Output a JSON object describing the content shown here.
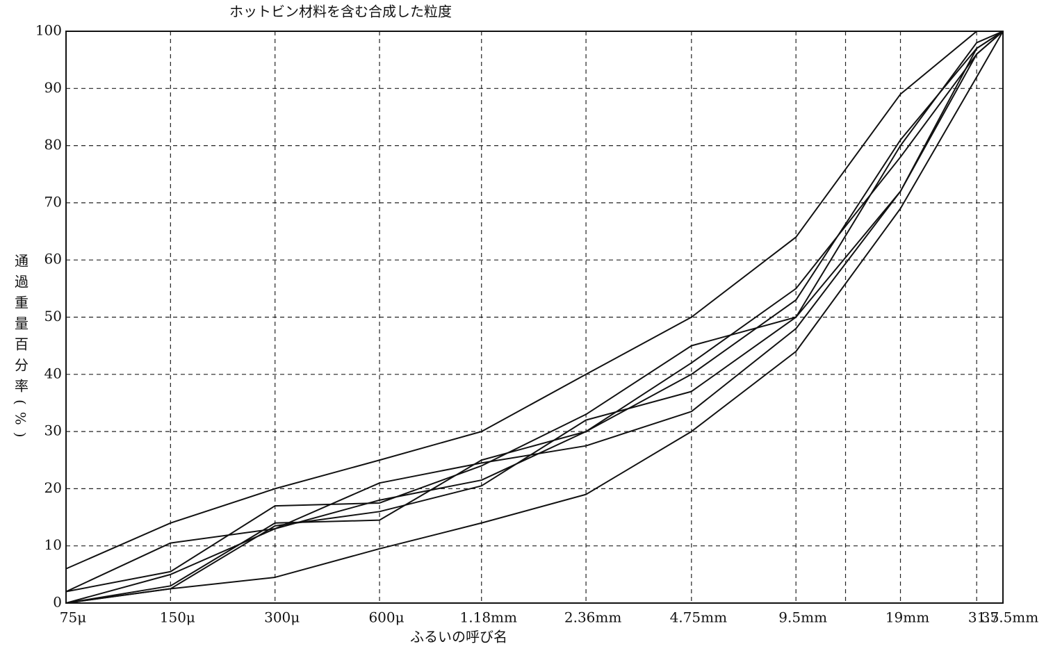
{
  "chart_data": {
    "type": "line",
    "title": "ホットビン材料を含む合成した粒度",
    "x_label": "ふるいの呼び名",
    "y_label": "通過重量百分率(%)",
    "x": [
      0.075,
      0.15,
      0.3,
      0.6,
      1.18,
      2.36,
      4.75,
      9.5,
      19,
      31.5,
      37.5
    ],
    "xscale": "log",
    "xlim": [
      0.075,
      37.5
    ],
    "xticks": [
      {
        "value": 0.075,
        "label": "75μ"
      },
      {
        "value": 0.15,
        "label": "150μ"
      },
      {
        "value": 0.3,
        "label": "300μ"
      },
      {
        "value": 0.6,
        "label": "600μ"
      },
      {
        "value": 1.18,
        "label": "1.18mm"
      },
      {
        "value": 2.36,
        "label": "2.36mm"
      },
      {
        "value": 4.75,
        "label": "4.75mm"
      },
      {
        "value": 9.5,
        "label": "9.5mm"
      },
      {
        "value": 13.2,
        "label": null
      },
      {
        "value": 19,
        "label": "19mm"
      },
      31.5,
      {
        "value": 37.5,
        "label": "37.5mm"
      }
    ],
    "ylim": [
      0,
      100
    ],
    "yticks": [
      0,
      10,
      20,
      30,
      40,
      50,
      60,
      70,
      80,
      90,
      100
    ],
    "grid": true,
    "series": [
      {
        "color": "#111",
        "values": [
          6,
          14,
          20,
          25,
          30,
          40,
          50,
          64,
          89,
          100,
          100
        ]
      },
      {
        "color": "#111",
        "values": [
          0,
          2.5,
          4.5,
          9.5,
          14,
          19,
          30,
          44,
          69,
          92,
          100
        ]
      },
      {
        "color": "#111",
        "values": [
          2,
          10.5,
          13,
          21,
          24.5,
          27.5,
          33.5,
          48,
          72,
          97,
          100
        ]
      },
      {
        "color": "#111",
        "values": [
          2,
          5.5,
          17,
          17.5,
          24,
          33,
          45,
          50,
          80,
          98,
          100
        ]
      },
      {
        "color": "#111",
        "values": [
          0,
          3,
          14,
          14.5,
          25,
          30,
          40,
          53,
          81,
          97,
          100
        ]
      },
      {
        "color": "#111",
        "values": [
          0,
          2.5,
          13.5,
          16,
          20.5,
          32,
          37,
          50,
          72,
          96,
          100
        ]
      },
      {
        "color": "#111",
        "values": [
          0,
          5,
          13,
          18,
          21.5,
          30,
          42,
          55,
          78,
          96,
          100
        ]
      }
    ]
  }
}
